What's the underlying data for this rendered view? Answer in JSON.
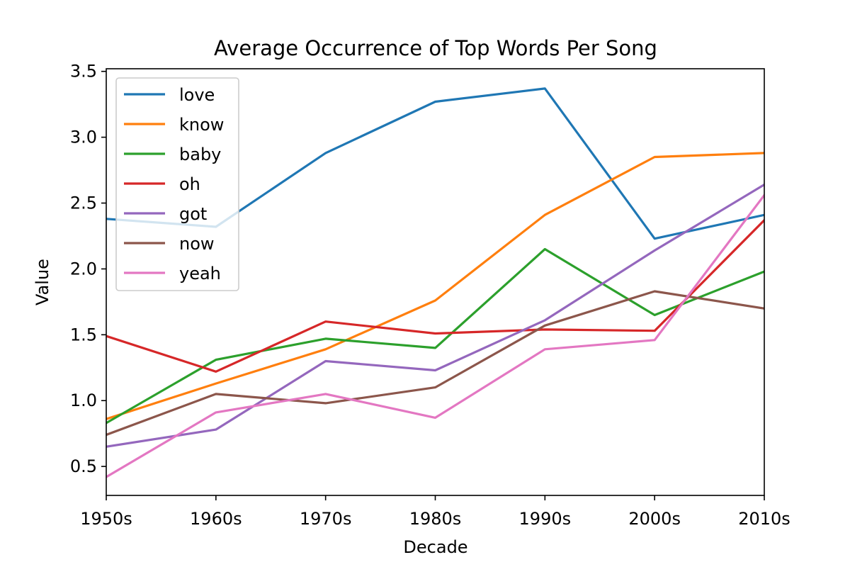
{
  "chart_data": {
    "type": "line",
    "title": "Average Occurrence of Top Words Per Song",
    "xlabel": "Decade",
    "ylabel": "Value",
    "categories": [
      "1950s",
      "1960s",
      "1970s",
      "1980s",
      "1990s",
      "2000s",
      "2010s"
    ],
    "ylim": [
      0.28,
      3.52
    ],
    "yticks": [
      0.5,
      1.0,
      1.5,
      2.0,
      2.5,
      3.0,
      3.5
    ],
    "ytick_labels": [
      "0.5",
      "1.0",
      "1.5",
      "2.0",
      "2.5",
      "3.0",
      "3.5"
    ],
    "grid": false,
    "legend_position": "top-left",
    "series": [
      {
        "name": "love",
        "color": "#1f77b4",
        "values": [
          2.38,
          2.32,
          2.88,
          3.27,
          3.37,
          2.23,
          2.41
        ]
      },
      {
        "name": "know",
        "color": "#ff7f0e",
        "values": [
          0.86,
          1.13,
          1.39,
          1.76,
          2.41,
          2.85,
          2.88
        ]
      },
      {
        "name": "baby",
        "color": "#2ca02c",
        "values": [
          0.83,
          1.31,
          1.47,
          1.4,
          2.15,
          1.65,
          1.98
        ]
      },
      {
        "name": "oh",
        "color": "#d62728",
        "values": [
          1.49,
          1.22,
          1.6,
          1.51,
          1.54,
          1.53,
          2.37
        ]
      },
      {
        "name": "got",
        "color": "#9467bd",
        "values": [
          0.65,
          0.78,
          1.3,
          1.23,
          1.61,
          2.14,
          2.64
        ]
      },
      {
        "name": "now",
        "color": "#8c564b",
        "values": [
          0.74,
          1.05,
          0.98,
          1.1,
          1.57,
          1.83,
          1.7
        ]
      },
      {
        "name": "yeah",
        "color": "#e377c2",
        "values": [
          0.42,
          0.91,
          1.05,
          0.87,
          1.39,
          1.46,
          2.56
        ]
      }
    ]
  }
}
